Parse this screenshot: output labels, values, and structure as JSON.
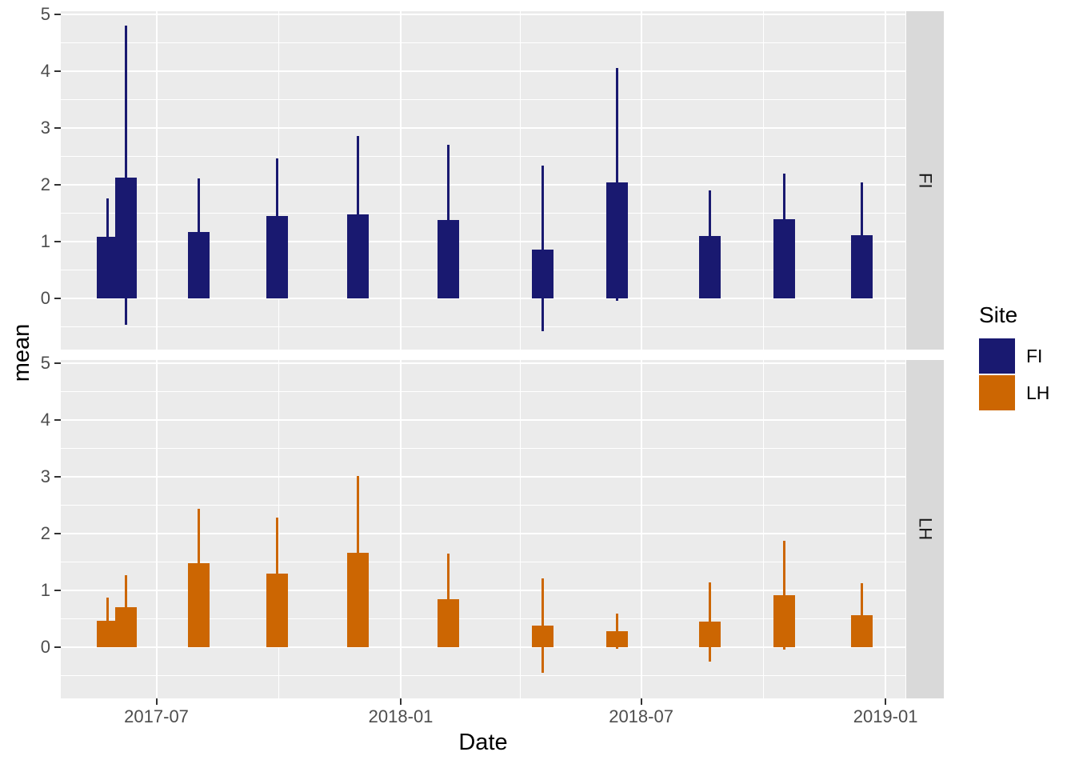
{
  "chart_data": {
    "type": "bar",
    "title": "",
    "xlabel": "Date",
    "ylabel": "mean",
    "grid": true,
    "legend_position": "right",
    "facets": [
      {
        "label": "FI"
      },
      {
        "label": "LH"
      }
    ],
    "x_axis": {
      "tick_dates": [
        "2017-07-01",
        "2018-01-01",
        "2018-07-01",
        "2019-01-01"
      ],
      "tick_labels": [
        "2017-07",
        "2018-01",
        "2018-07",
        "2019-01"
      ],
      "minor_dates": [
        "2017-10-01",
        "2018-04-01",
        "2018-10-01"
      ],
      "lim_dates": [
        "2017-04-20",
        "2019-01-16"
      ]
    },
    "y_axis": {
      "ticks": [
        0,
        1,
        2,
        3,
        4,
        5
      ],
      "tick_labels": [
        "0",
        "1",
        "2",
        "3",
        "4",
        "5"
      ],
      "minor_ticks": [
        -0.5,
        0.5,
        1.5,
        2.5,
        3.5,
        4.5
      ],
      "lim": [
        -0.9,
        5.06
      ]
    },
    "bar_width_days": 16,
    "series": [
      {
        "name": "FI",
        "facet": "FI",
        "color": "#191970",
        "points": [
          {
            "date": "2017-05-25",
            "mean": 1.08,
            "upper": 1.76,
            "lower": 0.4
          },
          {
            "date": "2017-06-08",
            "mean": 2.13,
            "upper": 4.8,
            "lower": -0.47
          },
          {
            "date": "2017-08-02",
            "mean": 1.17,
            "upper": 2.12,
            "lower": 0.22
          },
          {
            "date": "2017-09-30",
            "mean": 1.45,
            "upper": 2.47,
            "lower": 0.43
          },
          {
            "date": "2017-11-30",
            "mean": 1.48,
            "upper": 2.86,
            "lower": 0.1
          },
          {
            "date": "2018-02-06",
            "mean": 1.38,
            "upper": 2.7,
            "lower": 0.06
          },
          {
            "date": "2018-04-18",
            "mean": 0.86,
            "upper": 2.34,
            "lower": -0.58
          },
          {
            "date": "2018-06-13",
            "mean": 2.04,
            "upper": 4.06,
            "lower": -0.04
          },
          {
            "date": "2018-08-22",
            "mean": 1.1,
            "upper": 1.9,
            "lower": 0.3
          },
          {
            "date": "2018-10-17",
            "mean": 1.39,
            "upper": 2.2,
            "lower": 0.58
          },
          {
            "date": "2018-12-14",
            "mean": 1.12,
            "upper": 2.05,
            "lower": 0.19
          }
        ]
      },
      {
        "name": "LH",
        "facet": "LH",
        "color": "#CC6602",
        "points": [
          {
            "date": "2017-05-25",
            "mean": 0.47,
            "upper": 0.88,
            "lower": 0.06
          },
          {
            "date": "2017-06-08",
            "mean": 0.7,
            "upper": 1.27,
            "lower": 0.13
          },
          {
            "date": "2017-08-02",
            "mean": 1.48,
            "upper": 2.44,
            "lower": 0.52
          },
          {
            "date": "2017-09-30",
            "mean": 1.3,
            "upper": 2.28,
            "lower": 0.32
          },
          {
            "date": "2017-11-30",
            "mean": 1.67,
            "upper": 3.02,
            "lower": 0.32
          },
          {
            "date": "2018-02-06",
            "mean": 0.85,
            "upper": 1.65,
            "lower": 0.05
          },
          {
            "date": "2018-04-18",
            "mean": 0.38,
            "upper": 1.21,
            "lower": -0.45
          },
          {
            "date": "2018-06-13",
            "mean": 0.29,
            "upper": 0.59,
            "lower": -0.02
          },
          {
            "date": "2018-08-22",
            "mean": 0.45,
            "upper": 1.15,
            "lower": -0.25
          },
          {
            "date": "2018-10-17",
            "mean": 0.92,
            "upper": 1.87,
            "lower": -0.04
          },
          {
            "date": "2018-12-14",
            "mean": 0.57,
            "upper": 1.13,
            "lower": 0.01
          }
        ]
      }
    ],
    "legend": {
      "title": "Site",
      "entries": [
        {
          "label": "FI",
          "color": "#191970"
        },
        {
          "label": "LH",
          "color": "#CC6602"
        }
      ]
    }
  },
  "theme": {
    "panel_background": "#EBEBEB",
    "strip_background": "#D9D9D9",
    "gridline_color": "#FFFFFF",
    "tick_mark_color": "#333333",
    "tick_label_color": "#4D4D4D",
    "axis_title_color": "#000000",
    "strip_text_color": "#1A1A1A"
  }
}
